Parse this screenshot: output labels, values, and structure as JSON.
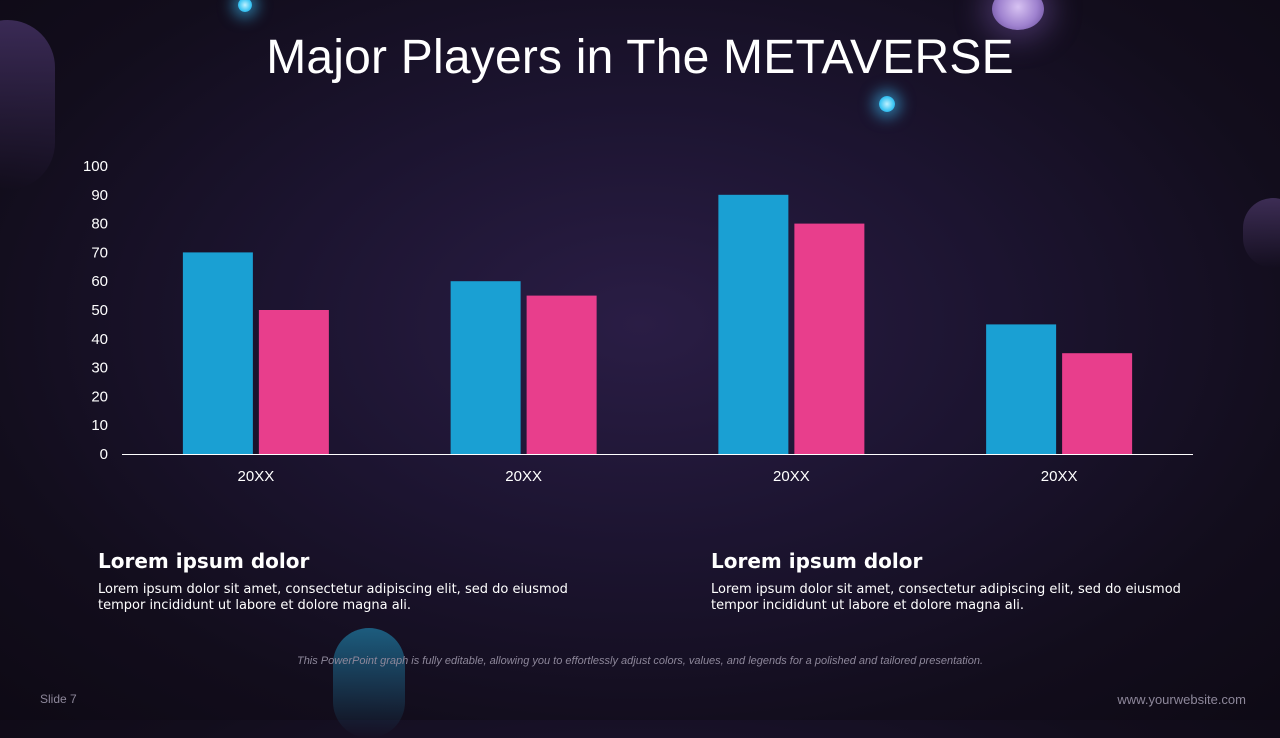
{
  "title": "Major Players in The METAVERSE",
  "colors": {
    "series_1": "#1aa0d3",
    "series_2": "#e83e8c",
    "axis": "#ffffff"
  },
  "chart_data": {
    "type": "bar",
    "categories": [
      "20XX",
      "20XX",
      "20XX",
      "20XX"
    ],
    "series": [
      {
        "values": [
          70,
          60,
          90,
          45
        ]
      },
      {
        "values": [
          50,
          55,
          80,
          35
        ]
      }
    ],
    "ylim": [
      0,
      100
    ],
    "yticks": [
      0,
      10,
      20,
      30,
      40,
      50,
      60,
      70,
      80,
      90,
      100
    ],
    "grid": false,
    "legend": "none"
  },
  "cards": [
    {
      "heading": "Lorem ipsum dolor",
      "body": "Lorem ipsum dolor sit amet, consectetur adipiscing elit, sed do eiusmod tempor incididunt ut labore et dolore magna ali."
    },
    {
      "heading": "Lorem ipsum dolor",
      "body": "Lorem ipsum dolor sit amet, consectetur adipiscing elit, sed do eiusmod tempor incididunt ut labore et dolore magna ali."
    }
  ],
  "footnote": "This PowerPoint graph is fully editable, allowing you to effortlessly adjust colors, values, and legends for a polished and tailored presentation.",
  "slide_number": "Slide 7",
  "website": "www.yourwebsite.com"
}
